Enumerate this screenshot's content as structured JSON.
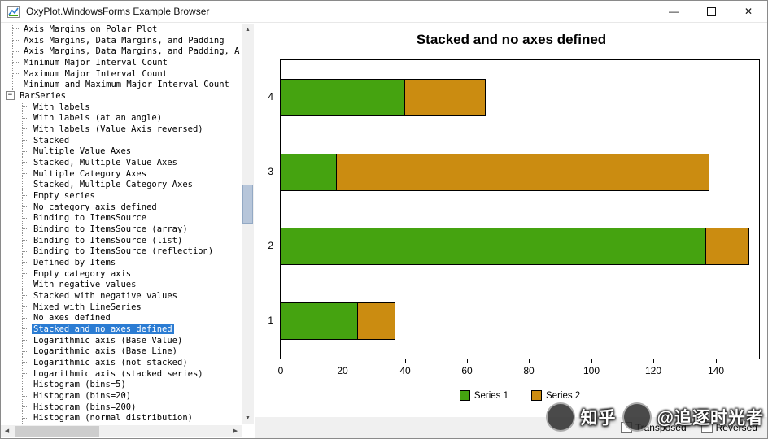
{
  "window": {
    "title": "OxyPlot.WindowsForms Example Browser"
  },
  "icons": {
    "collapse_glyph": "−",
    "scroll_up": "▲",
    "scroll_down": "▼",
    "scroll_left": "◀",
    "scroll_right": "▶",
    "minimize": "—",
    "close": "✕"
  },
  "colors": {
    "selection": "#2b7cd3",
    "series1": "#45a310",
    "series2": "#cb8c11",
    "bar_stroke": "#000000"
  },
  "tree": {
    "items": [
      {
        "label": "Axis Margins on Polar Plot",
        "indent": 1
      },
      {
        "label": "Axis Margins, Data Margins, and Padding",
        "indent": 1
      },
      {
        "label": "Axis Margins, Data Margins, and Padding, A",
        "indent": 1
      },
      {
        "label": "Minimum Major Interval Count",
        "indent": 1
      },
      {
        "label": "Maximum Major Interval Count",
        "indent": 1
      },
      {
        "label": "Minimum and Maximum Major Interval Count",
        "indent": 1
      },
      {
        "label": "BarSeries",
        "indent": 0,
        "expander": true
      },
      {
        "label": "With labels",
        "indent": 2
      },
      {
        "label": "With labels (at an angle)",
        "indent": 2
      },
      {
        "label": "With labels (Value Axis reversed)",
        "indent": 2
      },
      {
        "label": "Stacked",
        "indent": 2
      },
      {
        "label": "Multiple Value Axes",
        "indent": 2
      },
      {
        "label": "Stacked, Multiple Value Axes",
        "indent": 2
      },
      {
        "label": "Multiple Category Axes",
        "indent": 2
      },
      {
        "label": "Stacked, Multiple Category Axes",
        "indent": 2
      },
      {
        "label": "Empty series",
        "indent": 2
      },
      {
        "label": "No category axis defined",
        "indent": 2
      },
      {
        "label": "Binding to ItemsSource",
        "indent": 2
      },
      {
        "label": "Binding to ItemsSource (array)",
        "indent": 2
      },
      {
        "label": "Binding to ItemsSource (list)",
        "indent": 2
      },
      {
        "label": "Binding to ItemsSource (reflection)",
        "indent": 2
      },
      {
        "label": "Defined by Items",
        "indent": 2
      },
      {
        "label": "Empty category axis",
        "indent": 2
      },
      {
        "label": "With negative values",
        "indent": 2
      },
      {
        "label": "Stacked with negative values",
        "indent": 2
      },
      {
        "label": "Mixed with LineSeries",
        "indent": 2
      },
      {
        "label": "No axes defined",
        "indent": 2
      },
      {
        "label": "Stacked and no axes defined",
        "indent": 2,
        "selected": true
      },
      {
        "label": "Logarithmic axis (Base Value)",
        "indent": 2
      },
      {
        "label": "Logarithmic axis (Base Line)",
        "indent": 2
      },
      {
        "label": "Logarithmic axis (not stacked)",
        "indent": 2
      },
      {
        "label": "Logarithmic axis (stacked series)",
        "indent": 2
      },
      {
        "label": "Histogram (bins=5)",
        "indent": 2
      },
      {
        "label": "Histogram (bins=20)",
        "indent": 2
      },
      {
        "label": "Histogram (bins=200)",
        "indent": 2
      },
      {
        "label": "Histogram (normal distribution)",
        "indent": 2
      }
    ]
  },
  "chart_data": {
    "type": "bar",
    "orientation": "horizontal",
    "stacked": true,
    "title": "Stacked and no axes defined",
    "categories": [
      "1",
      "2",
      "3",
      "4"
    ],
    "series": [
      {
        "name": "Series 1",
        "color": "#45a310",
        "values": [
          25,
          137,
          18,
          40
        ]
      },
      {
        "name": "Series 2",
        "color": "#cb8c11",
        "values": [
          12,
          14,
          120,
          26
        ]
      }
    ],
    "x_ticks": [
      0,
      20,
      40,
      60,
      80,
      100,
      120,
      140
    ],
    "xlim": [
      0,
      154
    ],
    "grid": false,
    "legend_position": "bottom-center"
  },
  "footer": {
    "transposed_label": "Transposed",
    "reversed_label": "Reversed"
  },
  "watermark": {
    "brand": "知乎",
    "handle": "@追逐时光者"
  }
}
